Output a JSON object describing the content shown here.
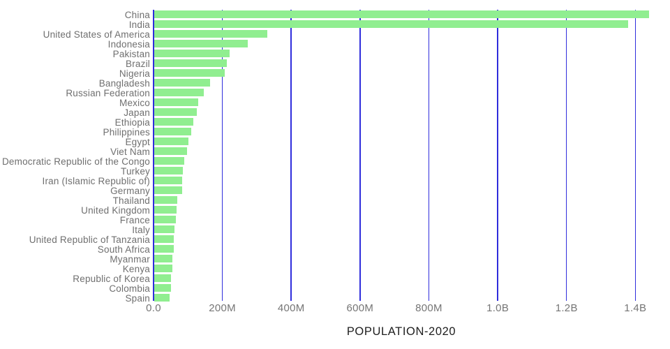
{
  "chart_data": {
    "type": "bar",
    "orientation": "horizontal",
    "title": "",
    "xlabel": "POPULATION-2020",
    "ylabel": "",
    "grid": "vertical",
    "legend": false,
    "xlim": [
      0,
      1455000000
    ],
    "categories": [
      "China",
      "India",
      "United States of America",
      "Indonesia",
      "Pakistan",
      "Brazil",
      "Nigeria",
      "Bangladesh",
      "Russian Federation",
      "Mexico",
      "Japan",
      "Ethiopia",
      "Philippines",
      "Egypt",
      "Viet Nam",
      "Democratic Republic of the Congo",
      "Turkey",
      "Iran (Islamic Republic of)",
      "Germany",
      "Thailand",
      "United Kingdom",
      "France",
      "Italy",
      "United Republic of Tanzania",
      "South Africa",
      "Myanmar",
      "Kenya",
      "Republic of Korea",
      "Colombia",
      "Spain"
    ],
    "values": [
      1439323776,
      1380004385,
      331002651,
      273523615,
      220892340,
      212559417,
      206139589,
      164689383,
      145934462,
      128932753,
      126476461,
      114963588,
      109581078,
      102334404,
      97338579,
      89561403,
      84339067,
      83992949,
      83783942,
      69799978,
      67886011,
      65273511,
      60461826,
      59734218,
      59308690,
      54409800,
      53771296,
      51269185,
      50882891,
      46754778
    ],
    "x_ticks": [
      {
        "value": 0,
        "label": "0.0"
      },
      {
        "value": 200000000,
        "label": "200M"
      },
      {
        "value": 400000000,
        "label": "400M"
      },
      {
        "value": 600000000,
        "label": "600M"
      },
      {
        "value": 800000000,
        "label": "800M"
      },
      {
        "value": 1000000000,
        "label": "1.0B"
      },
      {
        "value": 1200000000,
        "label": "1.2B"
      },
      {
        "value": 1400000000,
        "label": "1.4B"
      }
    ]
  },
  "colors": {
    "bar": "#90ee90",
    "grid": "#2f2ddc",
    "category_label": "#6f6f6f",
    "tick_label": "#757575",
    "axis_title": "#1d1d1d",
    "background": "#ffffff"
  }
}
